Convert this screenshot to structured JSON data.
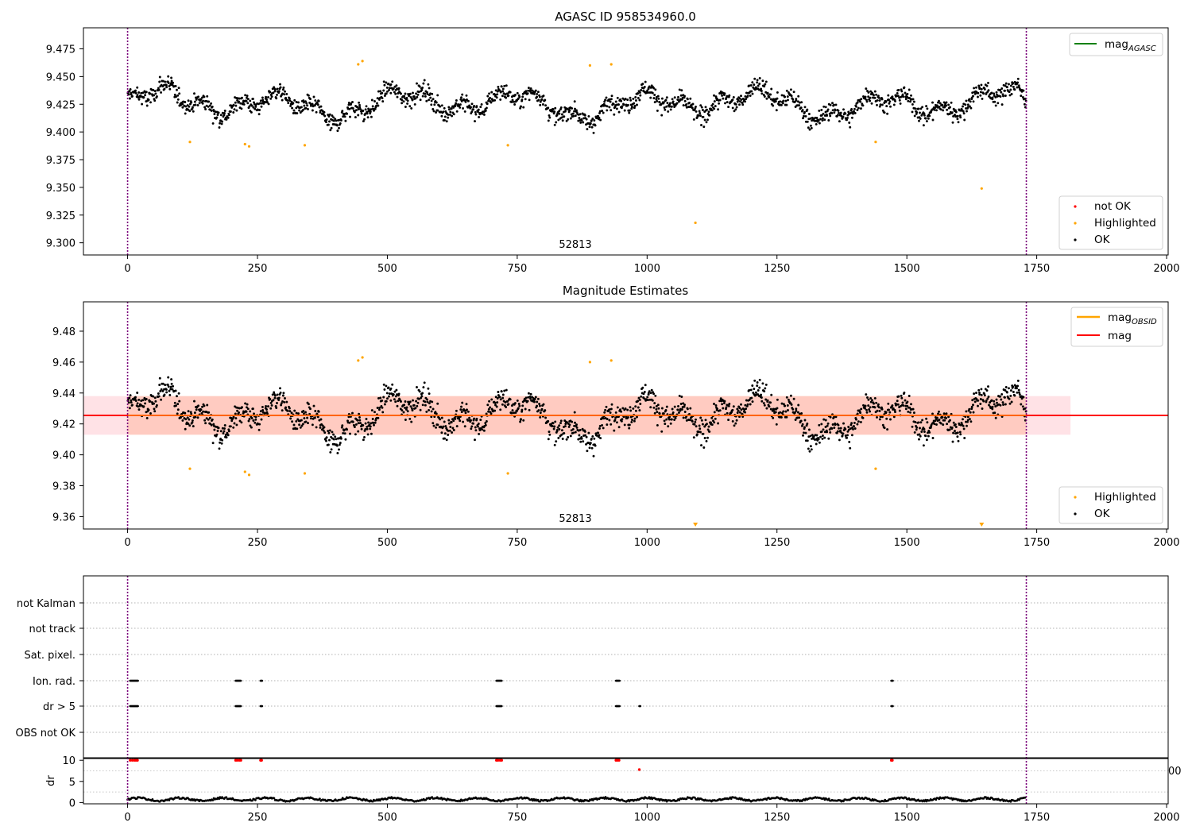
{
  "chart_data": [
    {
      "type": "scatter",
      "title": "AGASC ID 958534960.0",
      "xlim": [
        -85,
        2003
      ],
      "ylim": [
        9.289,
        9.494
      ],
      "xticks": [
        "0",
        "250",
        "500",
        "750",
        "1000",
        "1250",
        "1500",
        "1750",
        "2000"
      ],
      "yticks": [
        "9.300",
        "9.325",
        "9.350",
        "9.375",
        "9.400",
        "9.425",
        "9.450",
        "9.475"
      ],
      "obs_label": "52813",
      "obs_boundaries": [
        0,
        1730
      ],
      "legend_lines": [
        {
          "name": "mag",
          "sub": "AGASC",
          "color": "#008000"
        }
      ],
      "legend_points": [
        {
          "name": "not OK",
          "color": "#ff0000"
        },
        {
          "name": "Highlighted",
          "color": "#ffa500"
        },
        {
          "name": "OK",
          "color": "#000000"
        }
      ],
      "highlighted": [
        [
          120,
          9.391
        ],
        [
          226,
          9.389
        ],
        [
          234,
          9.387
        ],
        [
          341,
          9.388
        ],
        [
          444,
          9.461
        ],
        [
          452,
          9.464
        ],
        [
          732,
          9.388
        ],
        [
          890,
          9.46
        ],
        [
          931,
          9.461
        ],
        [
          1093,
          9.318
        ],
        [
          1440,
          9.391
        ],
        [
          1644,
          9.349
        ]
      ]
    },
    {
      "type": "scatter",
      "title": "Magnitude Estimates",
      "xlim": [
        -85,
        2003
      ],
      "ylim": [
        9.352,
        9.499
      ],
      "xticks": [
        "0",
        "250",
        "500",
        "750",
        "1000",
        "1250",
        "1500",
        "1750",
        "2000"
      ],
      "yticks": [
        "9.36",
        "9.38",
        "9.40",
        "9.42",
        "9.44",
        "9.46",
        "9.48"
      ],
      "obs_label": "52813",
      "mag": 9.4255,
      "band_inner": [
        9.413,
        9.438
      ],
      "band_outer": [
        9.413,
        9.438
      ],
      "band_outer_x": [
        -85,
        1815
      ],
      "legend_lines": [
        {
          "name": "mag",
          "sub": "OBSID",
          "color": "#ffa500"
        },
        {
          "name": "mag",
          "sub": "",
          "color": "#ff0000"
        }
      ],
      "legend_points": [
        {
          "name": "Highlighted",
          "color": "#ffa500"
        },
        {
          "name": "OK",
          "color": "#000000"
        }
      ],
      "highlighted": [
        [
          120,
          9.391
        ],
        [
          226,
          9.389
        ],
        [
          234,
          9.387
        ],
        [
          341,
          9.388
        ],
        [
          444,
          9.461
        ],
        [
          452,
          9.463
        ],
        [
          732,
          9.388
        ],
        [
          890,
          9.46
        ],
        [
          931,
          9.461
        ],
        [
          1440,
          9.391
        ]
      ],
      "below_axis_markers": [
        1093,
        1644
      ]
    },
    {
      "type": "scatter",
      "xlim": [
        -85,
        2003
      ],
      "flag_labels": [
        "not Kalman",
        "not track",
        "Sat. pixel.",
        "Ion. rad.",
        "dr > 5",
        "OBS not OK"
      ],
      "flag_ranges": {
        "Ion. rad.": [
          [
            5,
            20
          ],
          [
            208,
            218
          ],
          [
            256,
            259
          ],
          [
            710,
            720
          ],
          [
            940,
            947
          ],
          [
            1470,
            1473
          ]
        ],
        "dr > 5": [
          [
            5,
            20
          ],
          [
            208,
            218
          ],
          [
            256,
            259
          ],
          [
            710,
            720
          ],
          [
            940,
            947
          ],
          [
            985,
            987
          ],
          [
            1470,
            1473
          ]
        ]
      }
    },
    {
      "type": "scatter",
      "ylabel": "dr",
      "xlim": [
        -85,
        2003
      ],
      "ylim": [
        -0.3,
        10.6
      ],
      "xticks": [
        "0",
        "250",
        "500",
        "750",
        "1000",
        "1250",
        "1500",
        "1750",
        "2000"
      ],
      "yticks": [
        "0",
        "5",
        "10"
      ],
      "stray_tick_label": "00",
      "dr_high": [
        [
          5,
          10
        ],
        [
          9,
          10
        ],
        [
          13,
          10
        ],
        [
          16,
          10
        ],
        [
          19,
          10
        ],
        [
          208,
          10
        ],
        [
          211,
          10
        ],
        [
          215,
          10
        ],
        [
          218,
          10
        ],
        [
          256,
          10
        ],
        [
          258,
          10
        ],
        [
          710,
          10
        ],
        [
          713,
          10
        ],
        [
          717,
          10
        ],
        [
          720,
          10
        ],
        [
          940,
          10
        ],
        [
          943,
          10
        ],
        [
          946,
          10
        ],
        [
          985,
          7.8
        ],
        [
          1470,
          10
        ],
        [
          1472,
          10
        ]
      ]
    }
  ]
}
